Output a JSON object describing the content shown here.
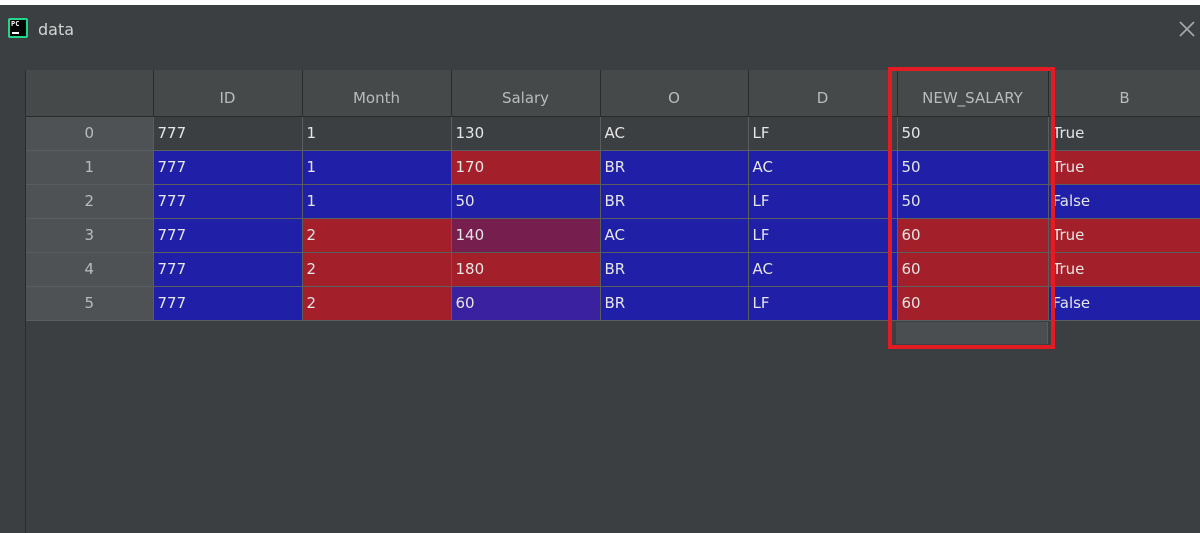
{
  "window": {
    "title": "data",
    "app_icon": "pycharm-icon",
    "close_icon": "close-icon"
  },
  "table": {
    "headers": [
      "",
      "ID",
      "Month",
      "Salary",
      "O",
      "D",
      "NEW_SALARY",
      "B"
    ],
    "rows": [
      {
        "index": "0",
        "cells": [
          "777",
          "1",
          "130",
          "AC",
          "LF",
          "50",
          "True"
        ]
      },
      {
        "index": "1",
        "cells": [
          "777",
          "1",
          "170",
          "BR",
          "AC",
          "50",
          "True"
        ]
      },
      {
        "index": "2",
        "cells": [
          "777",
          "1",
          "50",
          "BR",
          "LF",
          "50",
          "False"
        ]
      },
      {
        "index": "3",
        "cells": [
          "777",
          "2",
          "140",
          "AC",
          "LF",
          "60",
          "True"
        ]
      },
      {
        "index": "4",
        "cells": [
          "777",
          "2",
          "180",
          "BR",
          "AC",
          "60",
          "True"
        ]
      },
      {
        "index": "5",
        "cells": [
          "777",
          "2",
          "60",
          "BR",
          "LF",
          "60",
          "False"
        ]
      }
    ]
  },
  "colors": {
    "blue_cell": "#1f1fa8",
    "red_cell": "#a3202a",
    "purple_cell": "#761f4e",
    "highlight_box": "#e31b23",
    "background": "#3c3f41"
  }
}
